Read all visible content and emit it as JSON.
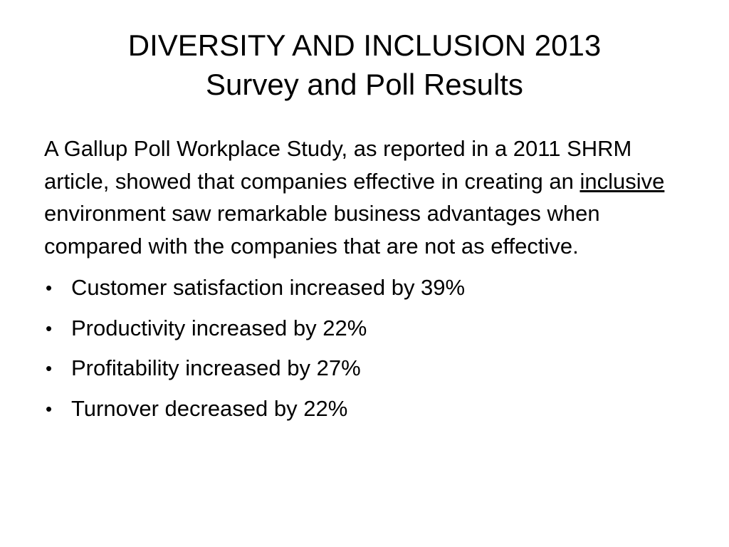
{
  "slide": {
    "title_line1": "DIVERSITY AND INCLUSION 2013",
    "title_line2": "Survey and Poll Results",
    "intro_before": "A Gallup Poll Workplace Study, as reported in a 2011 SHRM article, showed that companies effective in creating an ",
    "intro_underlined": "inclusive",
    "intro_after": " environment saw remarkable business advantages when compared with the companies that are not as effective.",
    "bullet_glyph": "•",
    "bullets": [
      "Customer satisfaction increased by 39%",
      "Productivity increased by 22%",
      "Profitability increased by 27%",
      "Turnover decreased by 22%"
    ]
  }
}
